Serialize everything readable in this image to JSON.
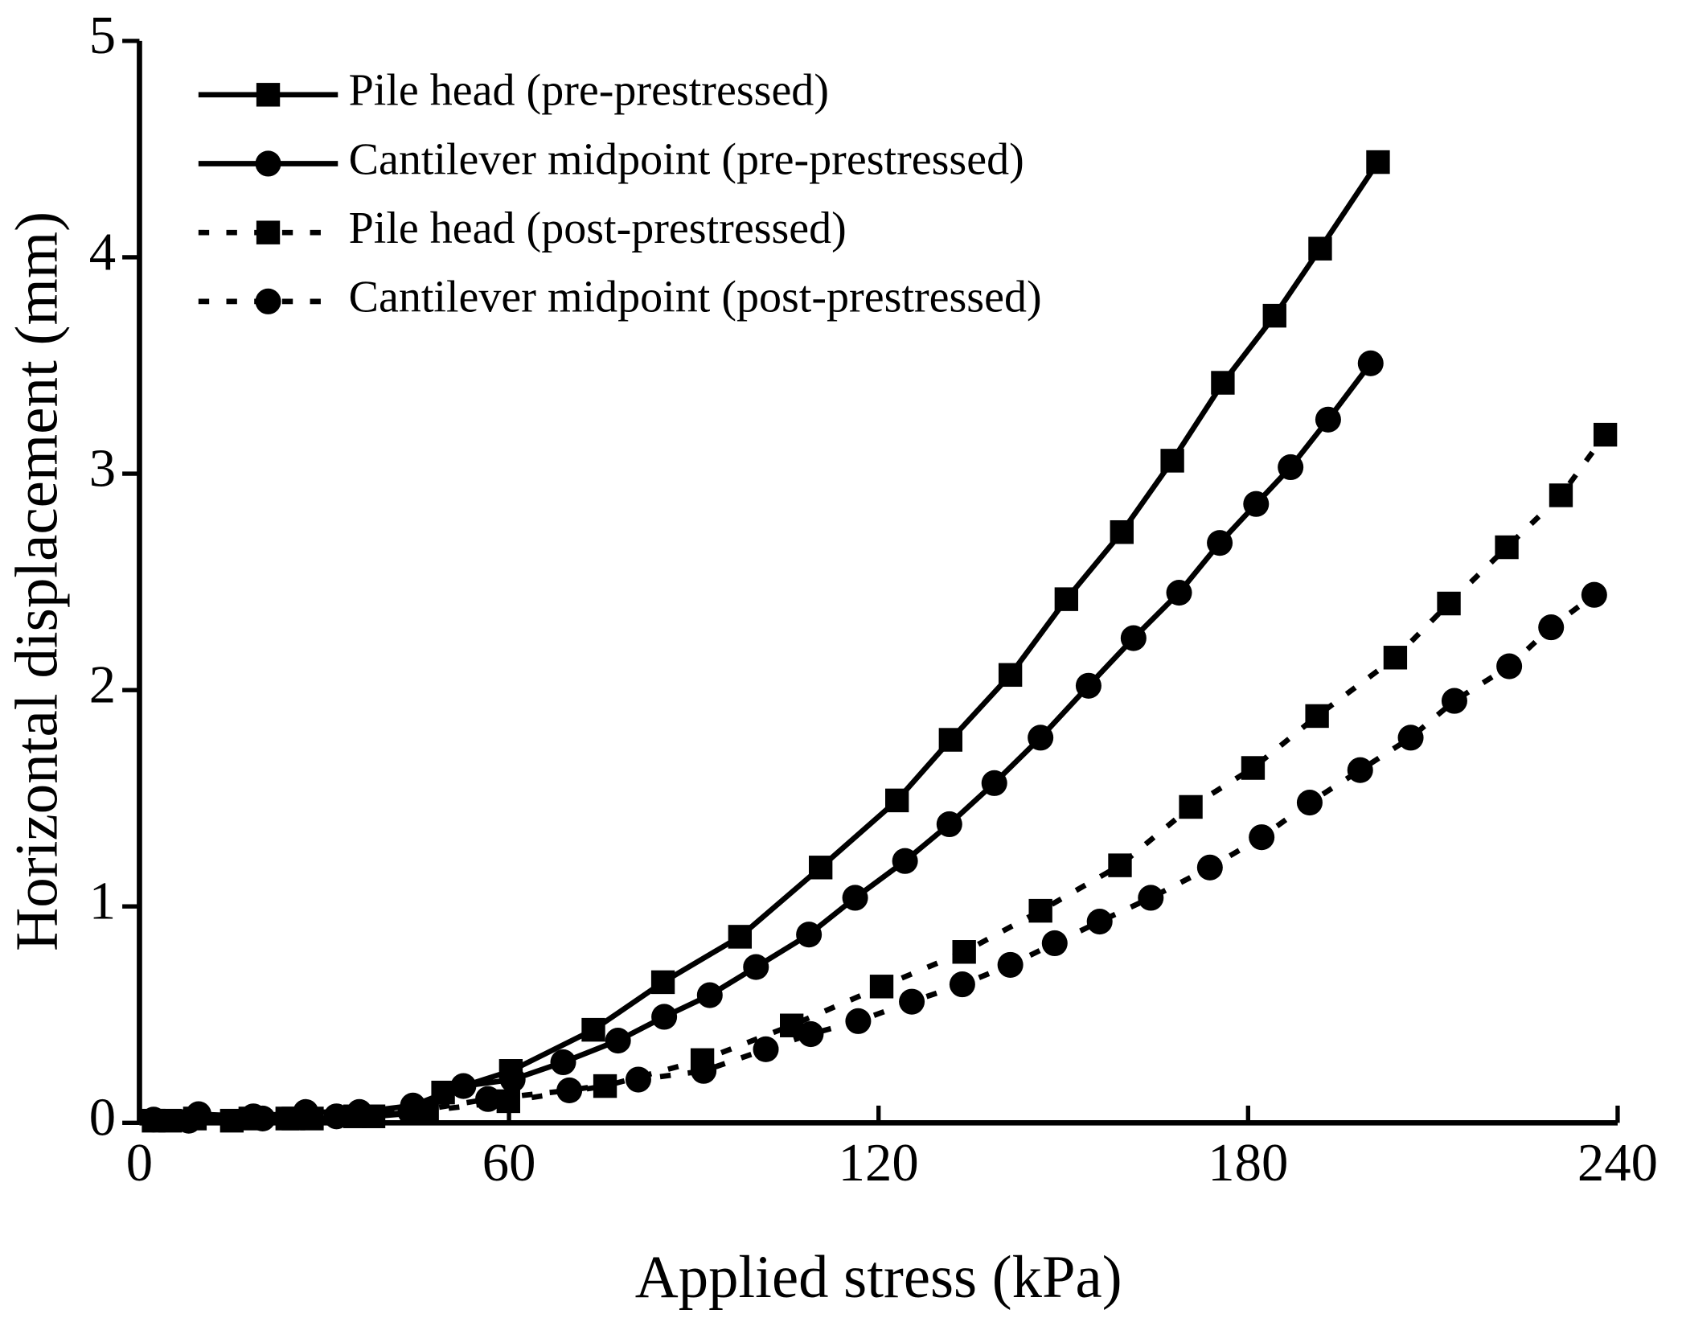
{
  "chart_data": {
    "type": "line",
    "xlabel": "Applied stress (kPa)",
    "ylabel": "Horizontal displacement (mm)",
    "xlim": [
      0,
      240
    ],
    "xticks": [
      0,
      60,
      120,
      180,
      240
    ],
    "ylim": [
      0,
      5
    ],
    "yticks": [
      0,
      1,
      2,
      3,
      4,
      5
    ],
    "legend": "upper left",
    "series": [
      {
        "name": "Pile head (pre-prestressed)",
        "color": "#000000",
        "line_style": "solid",
        "marker": "square",
        "x": [
          2.3,
          9,
          18,
          24,
          28,
          38,
          46.7,
          49.3,
          60.3,
          73.7,
          85,
          97.5,
          110.6,
          123,
          131.7,
          141.4,
          150.5,
          159.5,
          167.7,
          175.9,
          184.3,
          191.7,
          201.1
        ],
        "values": [
          0.01,
          0.02,
          0.02,
          0.02,
          0.02,
          0.03,
          0.05,
          0.14,
          0.24,
          0.43,
          0.65,
          0.86,
          1.18,
          1.49,
          1.77,
          2.07,
          2.42,
          2.73,
          3.06,
          3.42,
          3.73,
          4.04,
          4.44
        ]
      },
      {
        "name": "Cantilever midpoint (pre-prestressed)",
        "color": "#000000",
        "line_style": "solid",
        "marker": "circle",
        "x": [
          2.3,
          9.6,
          18.5,
          27,
          35.7,
          44.4,
          52.6,
          60.6,
          68.8,
          77.7,
          85.2,
          92.6,
          100.1,
          108.7,
          116.2,
          124.3,
          131.5,
          138.8,
          146.3,
          154.1,
          161.4,
          168.8,
          175.4,
          181.3,
          186.9,
          193,
          199.9
        ],
        "values": [
          0.015,
          0.04,
          0.03,
          0.05,
          0.05,
          0.08,
          0.17,
          0.2,
          0.28,
          0.38,
          0.49,
          0.59,
          0.72,
          0.87,
          1.04,
          1.21,
          1.38,
          1.57,
          1.78,
          2.02,
          2.24,
          2.45,
          2.68,
          2.86,
          3.03,
          3.25,
          3.51
        ]
      },
      {
        "name": "Pile head (post-prestressed)",
        "color": "#000000",
        "line_style": "dashed",
        "marker": "square",
        "x": [
          5,
          15,
          25,
          35,
          45,
          59.9,
          75.6,
          91.4,
          105.9,
          120.5,
          133.9,
          146.3,
          159.2,
          170.7,
          180.8,
          191.2,
          203.9,
          212.6,
          222,
          230.8,
          238
        ],
        "values": [
          0.01,
          0.01,
          0.02,
          0.03,
          0.05,
          0.1,
          0.17,
          0.29,
          0.45,
          0.63,
          0.79,
          0.98,
          1.19,
          1.46,
          1.64,
          1.88,
          2.15,
          2.4,
          2.66,
          2.9,
          3.18
        ]
      },
      {
        "name": "Cantilever midpoint (post-prestressed)",
        "color": "#000000",
        "line_style": "dashed",
        "marker": "circle",
        "x": [
          8,
          20,
          32,
          44,
          56.6,
          69.8,
          81,
          91.6,
          101.7,
          109,
          116.7,
          125.4,
          133.6,
          141.4,
          148.6,
          155.9,
          164.2,
          173.8,
          182.2,
          190,
          198.2,
          206.4,
          213.5,
          222.4,
          229.2,
          236.2
        ],
        "values": [
          0.01,
          0.02,
          0.03,
          0.05,
          0.11,
          0.15,
          0.2,
          0.24,
          0.34,
          0.41,
          0.47,
          0.56,
          0.64,
          0.73,
          0.83,
          0.93,
          1.04,
          1.18,
          1.32,
          1.48,
          1.63,
          1.78,
          1.95,
          2.11,
          2.29,
          2.44
        ]
      }
    ]
  }
}
